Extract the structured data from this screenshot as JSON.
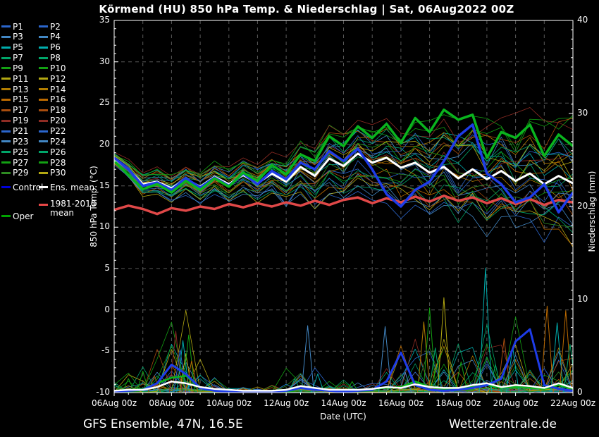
{
  "title": "Körmend  (HU)  850 hPa Temp. & Niederschlag | Sat, 06Aug2022 00Z",
  "footer": {
    "left": "GFS Ensemble, 47N, 16.5E",
    "right": "Wetterzentrale.de"
  },
  "axes": {
    "left_label": "850 hPa Temp. (°C)",
    "right_label": "Niederschlag (mm)",
    "bottom_label": "Date (UTC)",
    "temp_ticks": [
      35,
      30,
      25,
      20,
      15,
      10,
      5,
      0,
      -5,
      -10
    ],
    "precip_ticks": [
      40,
      30,
      20,
      10,
      0
    ],
    "date_ticks": [
      "06Aug 00z",
      "08Aug 00z",
      "10Aug 00z",
      "12Aug 00z",
      "14Aug 00z",
      "16Aug 00z",
      "18Aug 00z",
      "20Aug 00z",
      "22Aug 00z"
    ]
  },
  "colors": {
    "background": "#000000",
    "text": "#ffffff",
    "grid": "#5a5a5a",
    "axis": "#ffffff",
    "control_line": "#1e3ce8",
    "oper_line": "#0ab41e",
    "ens_mean_line": "#ffffff",
    "clim_line": "#e04848"
  },
  "legend": {
    "members": [
      {
        "label": "P1",
        "color": "#2b66cc"
      },
      {
        "label": "P2",
        "color": "#2b66cc"
      },
      {
        "label": "P3",
        "color": "#4287c4"
      },
      {
        "label": "P4",
        "color": "#4287c4"
      },
      {
        "label": "P5",
        "color": "#00adad"
      },
      {
        "label": "P6",
        "color": "#00adad"
      },
      {
        "label": "P7",
        "color": "#00a569"
      },
      {
        "label": "P8",
        "color": "#00a569"
      },
      {
        "label": "P9",
        "color": "#13a113"
      },
      {
        "label": "P10",
        "color": "#13a113"
      },
      {
        "label": "P11",
        "color": "#b3a812"
      },
      {
        "label": "P12",
        "color": "#b3a812"
      },
      {
        "label": "P13",
        "color": "#b17d00"
      },
      {
        "label": "P14",
        "color": "#b17d00"
      },
      {
        "label": "P15",
        "color": "#bc6a00"
      },
      {
        "label": "P16",
        "color": "#bc6a00"
      },
      {
        "label": "P17",
        "color": "#a94d0e"
      },
      {
        "label": "P18",
        "color": "#a94d0e"
      },
      {
        "label": "P19",
        "color": "#8f2c24"
      },
      {
        "label": "P20",
        "color": "#8f2c24"
      },
      {
        "label": "P21",
        "color": "#2b66cc"
      },
      {
        "label": "P22",
        "color": "#2b66cc"
      },
      {
        "label": "P23",
        "color": "#4287c4"
      },
      {
        "label": "P24",
        "color": "#4287c4"
      },
      {
        "label": "P25",
        "color": "#00a569"
      },
      {
        "label": "P26",
        "color": "#00a569"
      },
      {
        "label": "P27",
        "color": "#13a113"
      },
      {
        "label": "P28",
        "color": "#13a113"
      },
      {
        "label": "P29",
        "color": "#2e8b22"
      },
      {
        "label": "P30",
        "color": "#b3a812"
      }
    ],
    "control": {
      "label": "Control",
      "color": "#0000d9"
    },
    "ens_mean": {
      "label": "Ens. mean",
      "color": "#ffffff"
    },
    "clim": {
      "label": "1981-2010 mean",
      "color": "#e84747"
    },
    "oper": {
      "label": "Oper",
      "color": "#00a300"
    }
  },
  "chart_data": {
    "type": "line",
    "title": "Körmend (HU) 850 hPa Temp. & Niederschlag",
    "x_start": "06Aug2022 00Z",
    "x_end": "22Aug2022 00Z",
    "x_step_days": 0.5,
    "n_points": 33,
    "xlabel": "Date (UTC)",
    "ylabel_left": "850 hPa Temp. (°C)",
    "ylabel_right": "Niederschlag (mm)",
    "temp_axis_range": [
      -10,
      35
    ],
    "precip_axis_range": [
      0,
      40
    ],
    "grid": "dashed, vertical every 1 day, horizontal every 5 °C",
    "series": {
      "ens_mean_temp": [
        18.3,
        17.0,
        15.2,
        15.5,
        14.7,
        15.8,
        14.9,
        16.1,
        15.2,
        16.3,
        15.3,
        16.5,
        15.5,
        17.3,
        16.2,
        18.3,
        17.4,
        18.9,
        17.8,
        18.4,
        17.2,
        17.8,
        16.6,
        17.3,
        15.9,
        17.0,
        15.8,
        16.8,
        15.6,
        16.5,
        15.2,
        16.2,
        15.3
      ],
      "control_temp": [
        18.4,
        17.0,
        15.0,
        15.4,
        14.5,
        15.9,
        14.8,
        16.0,
        15.0,
        16.5,
        15.2,
        16.8,
        15.8,
        17.8,
        17.0,
        19.2,
        18.0,
        19.5,
        17.0,
        14.0,
        12.5,
        14.5,
        15.5,
        18.0,
        21.0,
        22.4,
        16.5,
        15.2,
        13.0,
        13.6,
        15.2,
        11.8,
        14.2
      ],
      "oper_temp": [
        18.0,
        16.3,
        14.6,
        15.2,
        14.2,
        15.6,
        14.5,
        15.9,
        14.9,
        16.6,
        15.6,
        17.5,
        16.4,
        18.8,
        18.0,
        21.0,
        19.8,
        22.2,
        20.8,
        22.5,
        20.2,
        23.2,
        21.5,
        24.2,
        23.0,
        23.6,
        18.4,
        21.5,
        20.8,
        22.4,
        18.6,
        21.2,
        19.8
      ],
      "clim_temp": [
        12.1,
        12.6,
        12.2,
        11.6,
        12.3,
        12.0,
        12.5,
        12.2,
        12.8,
        12.4,
        12.9,
        12.5,
        13.0,
        12.6,
        13.2,
        12.7,
        13.3,
        13.6,
        12.9,
        13.5,
        13.0,
        13.7,
        13.1,
        13.8,
        13.2,
        13.6,
        12.9,
        13.5,
        12.8,
        13.4,
        12.7,
        13.3,
        13.0
      ],
      "ens_mean_precip": [
        0.2,
        0.3,
        0.3,
        0.6,
        1.2,
        1.0,
        0.6,
        0.4,
        0.3,
        0.2,
        0.2,
        0.2,
        0.3,
        0.7,
        0.5,
        0.3,
        0.3,
        0.3,
        0.4,
        0.6,
        0.5,
        0.9,
        0.6,
        0.5,
        0.5,
        0.8,
        1.0,
        0.6,
        0.8,
        0.7,
        0.5,
        1.0,
        0.5
      ],
      "control_precip": [
        0.1,
        0.2,
        0.3,
        1.0,
        3.0,
        2.0,
        0.5,
        0.2,
        0.1,
        0.1,
        0.1,
        0.1,
        0.2,
        0.5,
        0.3,
        0.2,
        0.1,
        0.2,
        0.3,
        1.2,
        4.3,
        0.8,
        0.3,
        0.2,
        0.3,
        0.5,
        0.8,
        1.5,
        5.5,
        6.8,
        0.8,
        0.4,
        0.2
      ],
      "oper_precip": [
        0.2,
        0.3,
        0.4,
        1.0,
        1.6,
        1.8,
        0.6,
        0.3,
        0.2,
        0.1,
        0.1,
        0.2,
        0.3,
        0.5,
        0.4,
        0.2,
        0.2,
        0.3,
        0.4,
        0.5,
        0.6,
        1.2,
        0.6,
        0.4,
        0.4,
        0.6,
        0.8,
        0.5,
        0.6,
        0.5,
        0.4,
        0.8,
        0.4
      ]
    },
    "members": {
      "count": 30,
      "seed": 1234,
      "temp_spread": [
        0.5,
        0.8,
        1.1,
        1.2,
        1.3,
        1.3,
        1.4,
        1.4,
        1.5,
        1.6,
        1.7,
        1.8,
        2.0,
        2.2,
        2.4,
        2.6,
        2.8,
        3.0,
        3.2,
        3.4,
        3.6,
        3.8,
        4.0,
        4.2,
        4.4,
        4.5,
        4.6,
        4.7,
        4.8,
        4.9,
        5.0,
        5.2,
        5.4
      ],
      "precip_envelope": [
        0.5,
        0.6,
        0.8,
        1.5,
        2.5,
        2.2,
        1.2,
        0.6,
        0.3,
        0.2,
        0.2,
        0.3,
        0.8,
        1.5,
        1.0,
        0.5,
        0.4,
        0.4,
        0.8,
        1.2,
        1.5,
        2.0,
        1.8,
        1.5,
        1.5,
        2.0,
        2.2,
        1.5,
        2.0,
        2.0,
        1.5,
        2.2,
        1.0
      ]
    },
    "feature_spikes": [
      {
        "day": 0.5,
        "mm": 1.5,
        "color": "#13a113"
      },
      {
        "day": 1.0,
        "mm": 2.3,
        "color": "#13a113"
      },
      {
        "day": 1.4,
        "mm": 1.8,
        "color": "#a94d0e"
      },
      {
        "day": 2.15,
        "mm": 6.6,
        "color": "#8f2c24"
      },
      {
        "day": 2.3,
        "mm": 4.6,
        "color": "#2b66cc"
      },
      {
        "day": 2.4,
        "mm": 5.6,
        "color": "#00adad"
      },
      {
        "day": 2.5,
        "mm": 4.2,
        "color": "#b3a812"
      },
      {
        "day": 2.6,
        "mm": 6.2,
        "color": "#13a113"
      },
      {
        "day": 2.7,
        "mm": 3.4,
        "color": "#bc6a00"
      },
      {
        "day": 6.3,
        "mm": 1.5,
        "color": "#00a569"
      },
      {
        "day": 6.75,
        "mm": 7.2,
        "color": "#4287c4"
      },
      {
        "day": 7.1,
        "mm": 2.0,
        "color": "#00adad"
      },
      {
        "day": 8.3,
        "mm": 1.2,
        "color": "#13a113"
      },
      {
        "day": 9.45,
        "mm": 7.1,
        "color": "#4287c4"
      },
      {
        "day": 10.15,
        "mm": 2.2,
        "color": "#4287c4"
      },
      {
        "day": 10.8,
        "mm": 7.6,
        "color": "#b17d00"
      },
      {
        "day": 11.0,
        "mm": 9.1,
        "color": "#13a113"
      },
      {
        "day": 11.2,
        "mm": 4.8,
        "color": "#00a569"
      },
      {
        "day": 11.5,
        "mm": 10.2,
        "color": "#b3a812"
      },
      {
        "day": 12.1,
        "mm": 3.3,
        "color": "#13a113"
      },
      {
        "day": 12.95,
        "mm": 13.4,
        "color": "#00adad"
      },
      {
        "day": 13.3,
        "mm": 3.0,
        "color": "#00a569"
      },
      {
        "day": 13.6,
        "mm": 5.8,
        "color": "#a94d0e"
      },
      {
        "day": 13.9,
        "mm": 4.9,
        "color": "#00adad"
      },
      {
        "day": 15.1,
        "mm": 9.3,
        "color": "#bc6a00"
      },
      {
        "day": 15.45,
        "mm": 7.5,
        "color": "#00adad"
      },
      {
        "day": 15.75,
        "mm": 8.8,
        "color": "#bc6a00"
      },
      {
        "day": 15.9,
        "mm": 5.2,
        "color": "#00a569"
      }
    ]
  }
}
